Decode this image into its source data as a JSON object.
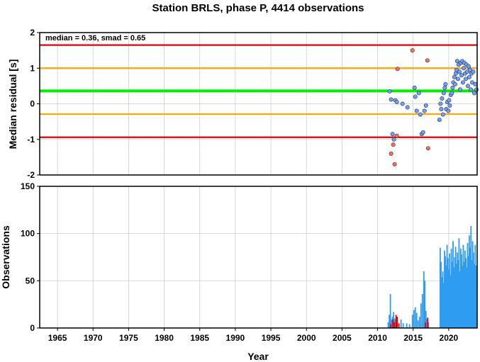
{
  "chart_data": [
    {
      "type": "scatter",
      "panel": "residuals",
      "title": "Station BRLS, phase P, 4414 observations",
      "xlabel": "",
      "ylabel": "Median residual [s]",
      "annotation": "median = 0.36, smad = 0.65",
      "xlim": [
        1962.5,
        2024
      ],
      "ylim": [
        -2,
        2
      ],
      "yticks": [
        2,
        1,
        0,
        -1,
        -2
      ],
      "ytick_labels": [
        "2",
        "1",
        "0",
        "-1",
        "-2"
      ],
      "grid": true,
      "reference_lines": [
        {
          "name": "median",
          "y": 0.36,
          "color": "#00ee00"
        },
        {
          "name": "upper-1",
          "y": 1.0,
          "color": "#ffa500"
        },
        {
          "name": "lower-1",
          "y": -0.29,
          "color": "#ffa500"
        },
        {
          "name": "upper-2",
          "y": 1.65,
          "color": "#e60000"
        },
        {
          "name": "lower-2",
          "y": -0.94,
          "color": "#e60000"
        }
      ],
      "series": [
        {
          "color": "#6ea0ff",
          "points": [
            [
              2011.7,
              0.35
            ],
            [
              2011.9,
              0.12
            ],
            [
              2012.1,
              -0.85
            ],
            [
              2012.3,
              -1.0
            ],
            [
              2012.5,
              0.1
            ],
            [
              2012.7,
              0.05
            ],
            [
              2013.5,
              0.0
            ],
            [
              2014.2,
              -0.1
            ],
            [
              2015.2,
              0.45
            ],
            [
              2015.3,
              0.2
            ],
            [
              2015.5,
              -0.2
            ],
            [
              2015.8,
              0.3
            ],
            [
              2016.0,
              -0.3
            ],
            [
              2016.2,
              -0.85
            ],
            [
              2016.4,
              -0.8
            ],
            [
              2016.6,
              -0.2
            ],
            [
              2016.8,
              -0.05
            ],
            [
              2018.7,
              -0.45
            ],
            [
              2018.85,
              0.0
            ],
            [
              2018.95,
              -0.15
            ],
            [
              2019.05,
              0.15
            ],
            [
              2019.2,
              -0.3
            ],
            [
              2019.3,
              0.3
            ],
            [
              2019.45,
              0.45
            ],
            [
              2019.55,
              0.55
            ],
            [
              2019.65,
              -0.15
            ],
            [
              2019.8,
              0.05
            ],
            [
              2019.95,
              -0.2
            ],
            [
              2020.05,
              0.1
            ],
            [
              2020.15,
              -0.05
            ],
            [
              2020.3,
              0.25
            ],
            [
              2020.45,
              0.3
            ],
            [
              2020.55,
              0.45
            ],
            [
              2020.65,
              0.6
            ],
            [
              2020.8,
              0.75
            ],
            [
              2020.9,
              0.55
            ],
            [
              2021.0,
              0.85
            ],
            [
              2021.1,
              0.95
            ],
            [
              2021.2,
              1.2
            ],
            [
              2021.3,
              0.7
            ],
            [
              2021.4,
              1.1
            ],
            [
              2021.5,
              0.9
            ],
            [
              2021.6,
              0.4
            ],
            [
              2021.7,
              1.15
            ],
            [
              2021.8,
              0.8
            ],
            [
              2021.9,
              1.2
            ],
            [
              2022.0,
              0.6
            ],
            [
              2022.1,
              1.0
            ],
            [
              2022.2,
              1.15
            ],
            [
              2022.3,
              0.85
            ],
            [
              2022.4,
              0.7
            ],
            [
              2022.5,
              1.1
            ],
            [
              2022.6,
              0.9
            ],
            [
              2022.7,
              0.5
            ],
            [
              2022.8,
              1.05
            ],
            [
              2022.9,
              0.75
            ],
            [
              2023.0,
              0.95
            ],
            [
              2023.1,
              0.4
            ],
            [
              2023.2,
              0.85
            ],
            [
              2023.3,
              0.6
            ],
            [
              2023.45,
              0.9
            ],
            [
              2023.6,
              0.3
            ],
            [
              2023.75,
              0.55
            ],
            [
              2023.9,
              0.4
            ]
          ]
        },
        {
          "color": "#ff6a5a",
          "points": [
            [
              2011.9,
              -1.4
            ],
            [
              2012.2,
              -1.15
            ],
            [
              2012.4,
              -1.7
            ],
            [
              2012.7,
              -0.9
            ],
            [
              2012.8,
              0.98
            ],
            [
              2014.9,
              1.5
            ],
            [
              2017.0,
              1.22
            ],
            [
              2017.1,
              -1.25
            ]
          ]
        }
      ]
    },
    {
      "type": "bar",
      "panel": "observations",
      "xlabel": "Year",
      "ylabel": "Observations",
      "xlim": [
        1962.5,
        2024
      ],
      "ylim": [
        0,
        150
      ],
      "yticks": [
        150,
        100,
        50,
        0
      ],
      "ytick_labels": [
        "150",
        "100",
        "50",
        "0"
      ],
      "xticks": [
        1965,
        1970,
        1975,
        1980,
        1985,
        1990,
        1995,
        2000,
        2005,
        2010,
        2015,
        2020
      ],
      "xtick_labels": [
        "1965",
        "1970",
        "1975",
        "1980",
        "1985",
        "1990",
        "1995",
        "2000",
        "2005",
        "2010",
        "2015",
        "2020"
      ],
      "grid": true,
      "series": [
        {
          "color": "#2f9cf0",
          "bars": [
            [
              2011.5,
              6
            ],
            [
              2011.65,
              14
            ],
            [
              2011.8,
              36
            ],
            [
              2011.95,
              9
            ],
            [
              2012.1,
              12
            ],
            [
              2012.25,
              17
            ],
            [
              2012.4,
              10
            ],
            [
              2012.55,
              8
            ],
            [
              2012.7,
              6
            ],
            [
              2013.3,
              9
            ],
            [
              2013.6,
              5
            ],
            [
              2014.1,
              5
            ],
            [
              2014.5,
              4
            ],
            [
              2014.9,
              14
            ],
            [
              2015.1,
              19
            ],
            [
              2015.3,
              22
            ],
            [
              2015.5,
              16
            ],
            [
              2015.7,
              8
            ],
            [
              2015.9,
              12
            ],
            [
              2016.1,
              26
            ],
            [
              2016.3,
              36
            ],
            [
              2016.5,
              60
            ],
            [
              2016.65,
              50
            ],
            [
              2016.8,
              18
            ],
            [
              2016.95,
              10
            ],
            [
              2017.15,
              6
            ],
            [
              2018.8,
              85
            ],
            [
              2018.92,
              70
            ],
            [
              2019.05,
              54
            ],
            [
              2019.17,
              60
            ],
            [
              2019.29,
              48
            ],
            [
              2019.41,
              82
            ],
            [
              2019.53,
              76
            ],
            [
              2019.65,
              66
            ],
            [
              2019.77,
              88
            ],
            [
              2019.89,
              74
            ],
            [
              2020.01,
              62
            ],
            [
              2020.13,
              79
            ],
            [
              2020.25,
              56
            ],
            [
              2020.37,
              84
            ],
            [
              2020.49,
              70
            ],
            [
              2020.61,
              92
            ],
            [
              2020.73,
              64
            ],
            [
              2020.85,
              75
            ],
            [
              2020.97,
              86
            ],
            [
              2021.09,
              68
            ],
            [
              2021.21,
              80
            ],
            [
              2021.33,
              72
            ],
            [
              2021.45,
              95
            ],
            [
              2021.57,
              60
            ],
            [
              2021.69,
              84
            ],
            [
              2021.81,
              78
            ],
            [
              2021.93,
              66
            ],
            [
              2022.05,
              88
            ],
            [
              2022.17,
              70
            ],
            [
              2022.29,
              82
            ],
            [
              2022.41,
              74
            ],
            [
              2022.53,
              64
            ],
            [
              2022.65,
              90
            ],
            [
              2022.77,
              76
            ],
            [
              2022.89,
              98
            ],
            [
              2023.01,
              85
            ],
            [
              2023.13,
              108
            ],
            [
              2023.25,
              72
            ],
            [
              2023.37,
              92
            ],
            [
              2023.49,
              80
            ],
            [
              2023.61,
              68
            ],
            [
              2023.73,
              88
            ],
            [
              2023.85,
              66
            ],
            [
              2023.95,
              40
            ]
          ]
        },
        {
          "color": "#e60000",
          "bars": [
            [
              2011.85,
              4
            ],
            [
              2012.15,
              9
            ],
            [
              2012.35,
              6
            ],
            [
              2012.6,
              14
            ],
            [
              2012.75,
              12
            ],
            [
              2013.0,
              5
            ],
            [
              2016.75,
              6
            ],
            [
              2017.05,
              11
            ]
          ]
        }
      ]
    }
  ]
}
